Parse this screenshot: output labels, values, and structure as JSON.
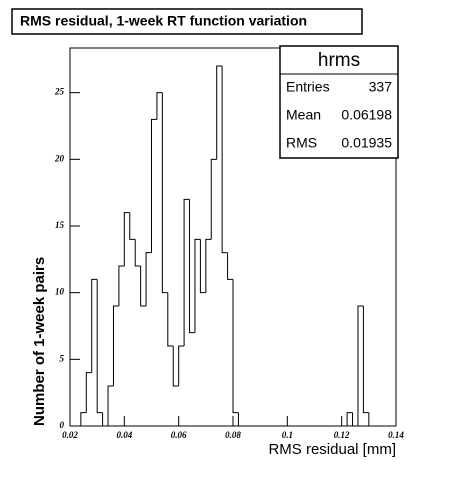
{
  "chart_data": {
    "type": "histogram",
    "title": "RMS residual, 1-week RT function variation",
    "x_label": "RMS residual [mm]",
    "y_label": "Number of 1-week pairs",
    "bins": [
      0.024,
      0.026,
      0.028,
      0.03,
      0.032,
      0.034,
      0.036,
      0.038,
      0.04,
      0.042,
      0.044,
      0.046,
      0.048,
      0.05,
      0.052,
      0.054,
      0.056,
      0.058,
      0.06,
      0.062,
      0.064,
      0.066,
      0.068,
      0.07,
      0.072,
      0.074,
      0.076,
      0.078,
      0.08,
      0.082,
      0.084,
      0.086,
      0.088,
      0.09,
      0.092,
      0.094,
      0.096,
      0.098,
      0.1,
      0.102,
      0.104,
      0.106,
      0.108,
      0.11,
      0.112,
      0.114,
      0.116,
      0.118,
      0.12,
      0.122,
      0.124,
      0.126,
      0.128,
      0.13,
      0.132
    ],
    "values": [
      1,
      4,
      11,
      1,
      0,
      3,
      9,
      12,
      16,
      14,
      12,
      9,
      13,
      23,
      25,
      10,
      6,
      3,
      6,
      17,
      7,
      14,
      10,
      14,
      20,
      27,
      13,
      11,
      1,
      0,
      0,
      0,
      0,
      0,
      0,
      0,
      0,
      0,
      0,
      0,
      0,
      0,
      0,
      0,
      0,
      0,
      0,
      0,
      0,
      1,
      0,
      9,
      1,
      0
    ],
    "color": "#000000",
    "xlim": [
      0.02,
      0.14
    ],
    "xticks": [
      0.02,
      0.04,
      0.06,
      0.08,
      0.1,
      0.12,
      0.14
    ],
    "ylim": [
      0,
      28.35
    ],
    "yticks": [
      0,
      5,
      10,
      15,
      20,
      25
    ],
    "stats": {
      "name": "hrms",
      "rows": [
        {
          "label": "Entries",
          "value": 337
        },
        {
          "label": "Mean",
          "value": 0.06198
        },
        {
          "label": "RMS",
          "value": 0.01935
        }
      ]
    }
  }
}
